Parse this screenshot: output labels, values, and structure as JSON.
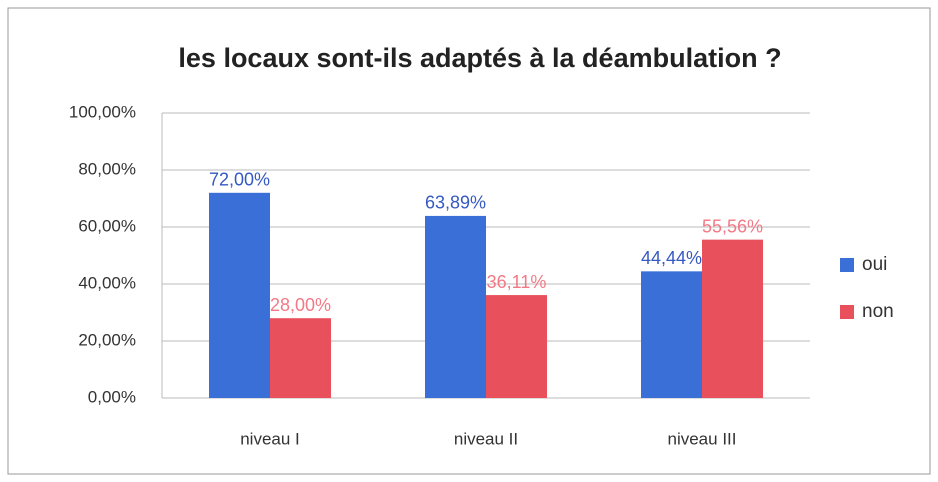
{
  "chart_data": {
    "type": "bar",
    "title": "les locaux sont-ils adaptés à la déambulation ?",
    "categories": [
      "niveau I",
      "niveau II",
      "niveau III"
    ],
    "series": [
      {
        "name": "oui",
        "color": "#3a6fd8",
        "values": [
          72,
          63.89,
          44.44
        ],
        "value_labels": [
          "72,00%",
          "63,89%",
          "44,44%"
        ],
        "label_color": "#3559c2"
      },
      {
        "name": "non",
        "color": "#e8505b",
        "values": [
          28,
          36.11,
          55.56
        ],
        "value_labels": [
          "28,00%",
          "36,11%",
          "55,56%"
        ],
        "label_color": "#f27a86"
      }
    ],
    "ylim": [
      0,
      100
    ],
    "yticks": [
      {
        "value": 0,
        "label": "0,00%"
      },
      {
        "value": 20,
        "label": "20,00%"
      },
      {
        "value": 40,
        "label": "40,00%"
      },
      {
        "value": 60,
        "label": "60,00%"
      },
      {
        "value": 80,
        "label": "80,00%"
      },
      {
        "value": 100,
        "label": "100,00%"
      }
    ],
    "grid": true,
    "legend": "right"
  }
}
